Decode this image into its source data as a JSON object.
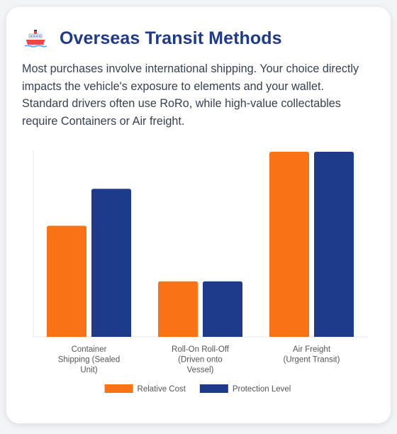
{
  "header": {
    "title": "Overseas Transit Methods",
    "icon": "ship-icon"
  },
  "description": "Most purchases involve international shipping. Your choice directly impacts the vehicle's exposure to elements and your wallet. Standard drivers often use RoRo, while high-value collectables require Containers or Air freight.",
  "chart_data": {
    "type": "bar",
    "categories": [
      [
        "Container",
        "Shipping (Sealed",
        "Unit)"
      ],
      [
        "Roll-On Roll-Off",
        "(Driven onto",
        "Vessel)"
      ],
      [
        "Air Freight",
        "(Urgent Transit)"
      ]
    ],
    "series": [
      {
        "name": "Relative Cost",
        "color": "#f97316",
        "values": [
          6,
          3,
          10
        ]
      },
      {
        "name": "Protection Level",
        "color": "#1e3a8a",
        "values": [
          8,
          3,
          10
        ]
      }
    ],
    "ylim": [
      0,
      10
    ],
    "y_axis_visible": false,
    "grid": false,
    "legend": "bottom"
  }
}
